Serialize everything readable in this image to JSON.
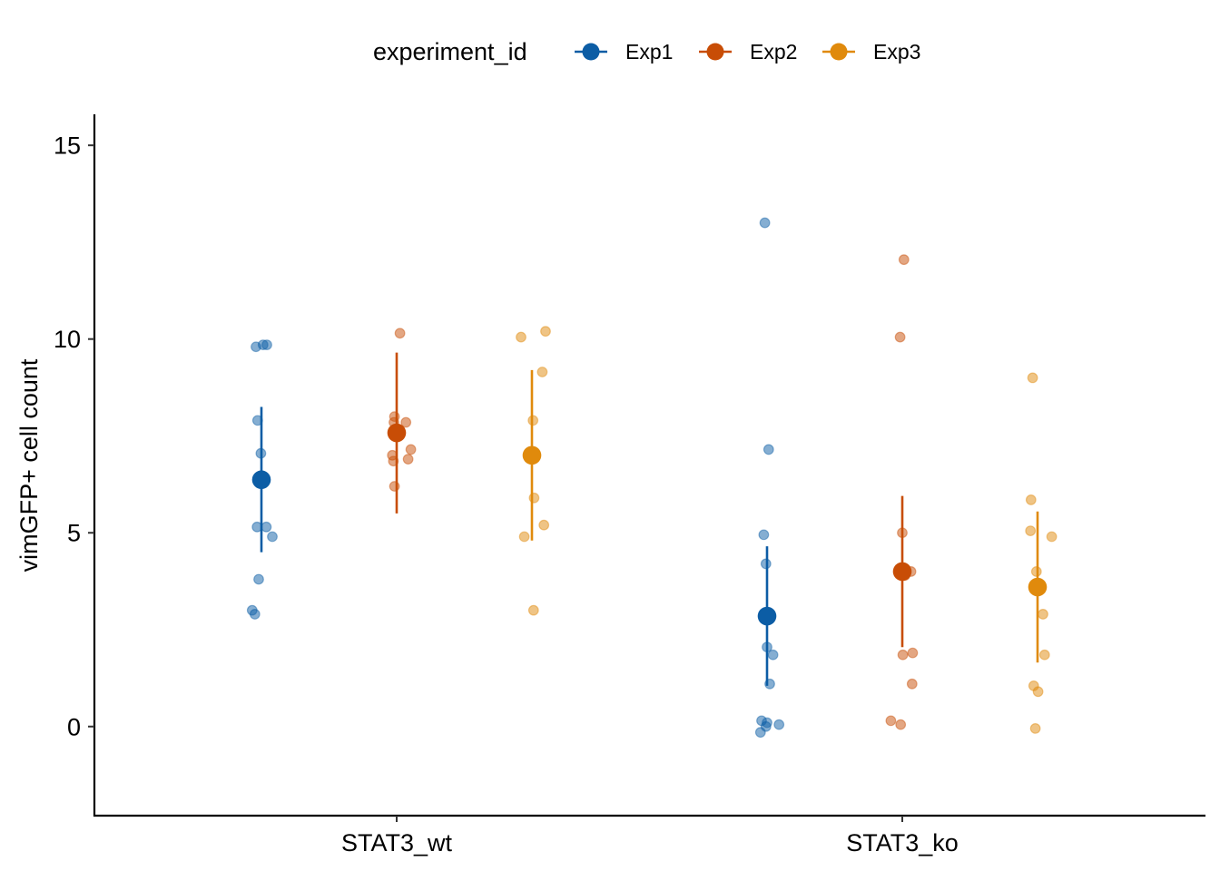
{
  "chart_data": {
    "type": "scatter",
    "subtype": "jittered strip plot with mean and error bars",
    "title": "",
    "xlabel": "",
    "ylabel": "vimGFP+ cell count",
    "categories": [
      "STAT3_wt",
      "STAT3_ko"
    ],
    "ylim": [
      -2.3,
      15.8
    ],
    "yticks": [
      0,
      5,
      10,
      15
    ],
    "grid": false,
    "legend": {
      "title": "experiment_id",
      "position": "top",
      "entries": [
        "Exp1",
        "Exp2",
        "Exp3"
      ]
    },
    "series": [
      {
        "name": "Exp1",
        "color": "#0C5DA5",
        "groups": [
          {
            "category": "STAT3_wt",
            "points": [
              9.8,
              9.85,
              9.85,
              7.9,
              7.05,
              5.15,
              5.15,
              4.9,
              3.8,
              3.0,
              2.9
            ],
            "jitter": [
              -0.1,
              0.03,
              0.1,
              -0.07,
              -0.01,
              -0.08,
              0.09,
              0.2,
              -0.05,
              -0.17,
              -0.12
            ],
            "mean": 6.37,
            "err_low": 4.5,
            "err_high": 8.25
          },
          {
            "category": "STAT3_ko",
            "points": [
              13.0,
              7.15,
              4.95,
              4.2,
              2.05,
              1.85,
              1.1,
              0.15,
              0.1,
              0.0,
              0.05,
              -0.15
            ],
            "jitter": [
              -0.04,
              0.03,
              -0.06,
              -0.02,
              0.0,
              0.11,
              0.05,
              -0.1,
              0.0,
              -0.02,
              0.22,
              -0.12
            ],
            "mean": 2.85,
            "err_low": 1.05,
            "err_high": 4.65
          }
        ]
      },
      {
        "name": "Exp2",
        "color": "#C84D06",
        "groups": [
          {
            "category": "STAT3_wt",
            "points": [
              10.15,
              8.0,
              7.85,
              7.85,
              7.15,
              7.0,
              6.85,
              6.9,
              6.2
            ],
            "jitter": [
              0.06,
              -0.04,
              -0.05,
              0.17,
              0.26,
              -0.08,
              -0.06,
              0.21,
              -0.04
            ],
            "mean": 7.58,
            "err_low": 5.5,
            "err_high": 9.65
          },
          {
            "category": "STAT3_ko",
            "points": [
              12.05,
              10.05,
              5.0,
              4.0,
              3.9,
              1.85,
              1.9,
              1.1,
              0.15,
              0.05
            ],
            "jitter": [
              0.03,
              -0.04,
              0.0,
              0.16,
              0.05,
              0.01,
              0.19,
              0.18,
              -0.21,
              -0.03
            ],
            "mean": 4.0,
            "err_low": 2.05,
            "err_high": 5.95
          }
        ]
      },
      {
        "name": "Exp3",
        "color": "#E08A0C",
        "groups": [
          {
            "category": "STAT3_wt",
            "points": [
              10.05,
              10.2,
              9.15,
              7.9,
              5.9,
              5.2,
              4.9,
              3.0
            ],
            "jitter": [
              -0.2,
              0.25,
              0.19,
              0.02,
              0.04,
              0.22,
              -0.14,
              0.03
            ],
            "mean": 7.0,
            "err_low": 4.8,
            "err_high": 9.2
          },
          {
            "category": "STAT3_ko",
            "points": [
              9.0,
              5.85,
              5.05,
              4.9,
              4.0,
              2.9,
              1.85,
              1.05,
              0.9,
              -0.05
            ],
            "jitter": [
              -0.09,
              -0.12,
              -0.13,
              0.26,
              -0.02,
              0.1,
              0.13,
              -0.07,
              0.01,
              -0.04
            ],
            "mean": 3.6,
            "err_low": 1.65,
            "err_high": 5.55
          }
        ]
      }
    ]
  }
}
